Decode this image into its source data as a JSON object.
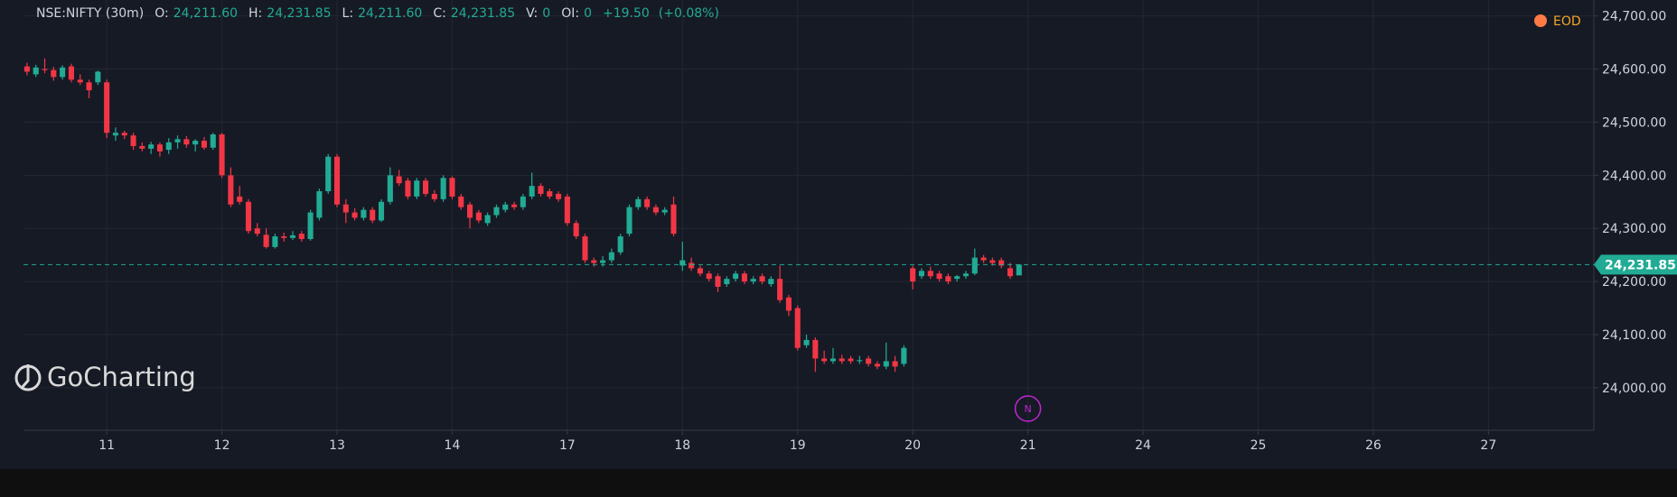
{
  "chart_data": {
    "type": "candlestick",
    "header": {
      "symbol": "NSE:NIFTY (30m)",
      "fields": [
        {
          "key": "O:",
          "value": "24,211.60"
        },
        {
          "key": "H:",
          "value": "24,231.85"
        },
        {
          "key": "L:",
          "value": "24,211.60"
        },
        {
          "key": "C:",
          "value": "24,231.85"
        },
        {
          "key": "V:",
          "value": "0"
        },
        {
          "key": "OI:",
          "value": "0"
        }
      ],
      "change": "+19.50",
      "change_pct": "(+0.08%)"
    },
    "eod_label": "EOD",
    "brand": "GoCharting",
    "event_marker": {
      "x": 113,
      "label": "N"
    },
    "up_color": "#22ab94",
    "down_color": "#f23645",
    "price_line": {
      "value": 24231.85,
      "label": "24,231.85"
    },
    "xlim": [
      -0.4,
      176.9
    ],
    "xticks": [
      {
        "value": 9,
        "label": "11"
      },
      {
        "value": 22,
        "label": "12"
      },
      {
        "value": 35,
        "label": "13"
      },
      {
        "value": 48,
        "label": "14"
      },
      {
        "value": 61,
        "label": "17"
      },
      {
        "value": 74,
        "label": "18"
      },
      {
        "value": 87,
        "label": "19"
      },
      {
        "value": 100,
        "label": "20"
      },
      {
        "value": 113,
        "label": "21"
      },
      {
        "value": 126,
        "label": "24"
      },
      {
        "value": 139,
        "label": "25"
      },
      {
        "value": 152,
        "label": "26"
      },
      {
        "value": 165,
        "label": "27"
      }
    ],
    "ylim": [
      23920,
      24730
    ],
    "yticks": [
      {
        "value": 24000,
        "label": "24,000.00"
      },
      {
        "value": 24100,
        "label": "24,100.00"
      },
      {
        "value": 24200,
        "label": "24,200.00"
      },
      {
        "value": 24300,
        "label": "24,300.00"
      },
      {
        "value": 24400,
        "label": "24,400.00"
      },
      {
        "value": 24500,
        "label": "24,500.00"
      },
      {
        "value": 24600,
        "label": "24,600.00"
      },
      {
        "value": 24700,
        "label": "24,700.00"
      }
    ],
    "grid": true,
    "ohlc": [
      [
        24605,
        24612,
        24588,
        24595
      ],
      [
        24590,
        24608,
        24585,
        24603
      ],
      [
        24600,
        24620,
        24592,
        24598
      ],
      [
        24598,
        24604,
        24578,
        24585
      ],
      [
        24585,
        24607,
        24580,
        24603
      ],
      [
        24605,
        24610,
        24575,
        24580
      ],
      [
        24580,
        24590,
        24570,
        24575
      ],
      [
        24575,
        24580,
        24545,
        24560
      ],
      [
        24575,
        24597,
        24570,
        24595
      ],
      [
        24575,
        24580,
        24470,
        24480
      ],
      [
        24475,
        24490,
        24465,
        24480
      ],
      [
        24480,
        24484,
        24468,
        24475
      ],
      [
        24475,
        24480,
        24448,
        24455
      ],
      [
        24455,
        24462,
        24445,
        24450
      ],
      [
        24450,
        24463,
        24440,
        24458
      ],
      [
        24458,
        24462,
        24435,
        24445
      ],
      [
        24448,
        24470,
        24440,
        24462
      ],
      [
        24462,
        24475,
        24450,
        24468
      ],
      [
        24468,
        24474,
        24452,
        24458
      ],
      [
        24458,
        24468,
        24445,
        24465
      ],
      [
        24465,
        24472,
        24448,
        24452
      ],
      [
        24452,
        24480,
        24448,
        24477
      ],
      [
        24477,
        24480,
        24395,
        24400
      ],
      [
        24400,
        24415,
        24340,
        24345
      ],
      [
        24360,
        24380,
        24345,
        24350
      ],
      [
        24350,
        24355,
        24290,
        24295
      ],
      [
        24300,
        24310,
        24285,
        24290
      ],
      [
        24288,
        24300,
        24262,
        24265
      ],
      [
        24265,
        24290,
        24262,
        24285
      ],
      [
        24285,
        24292,
        24275,
        24282
      ],
      [
        24282,
        24295,
        24278,
        24287
      ],
      [
        24290,
        24295,
        24275,
        24280
      ],
      [
        24280,
        24335,
        24277,
        24330
      ],
      [
        24320,
        24375,
        24315,
        24370
      ],
      [
        24370,
        24440,
        24365,
        24435
      ],
      [
        24435,
        24440,
        24340,
        24345
      ],
      [
        24345,
        24355,
        24310,
        24330
      ],
      [
        24330,
        24338,
        24315,
        24320
      ],
      [
        24320,
        24340,
        24315,
        24335
      ],
      [
        24335,
        24340,
        24310,
        24315
      ],
      [
        24315,
        24355,
        24312,
        24350
      ],
      [
        24350,
        24415,
        24345,
        24400
      ],
      [
        24398,
        24410,
        24380,
        24385
      ],
      [
        24390,
        24395,
        24355,
        24360
      ],
      [
        24360,
        24395,
        24355,
        24390
      ],
      [
        24390,
        24395,
        24360,
        24365
      ],
      [
        24365,
        24372,
        24350,
        24355
      ],
      [
        24355,
        24400,
        24350,
        24395
      ],
      [
        24395,
        24398,
        24355,
        24360
      ],
      [
        24360,
        24365,
        24335,
        24340
      ],
      [
        24345,
        24350,
        24300,
        24320
      ],
      [
        24330,
        24335,
        24310,
        24315
      ],
      [
        24310,
        24330,
        24305,
        24325
      ],
      [
        24325,
        24345,
        24320,
        24340
      ],
      [
        24335,
        24350,
        24330,
        24345
      ],
      [
        24345,
        24350,
        24335,
        24340
      ],
      [
        24340,
        24365,
        24335,
        24360
      ],
      [
        24360,
        24405,
        24355,
        24380
      ],
      [
        24380,
        24385,
        24360,
        24365
      ],
      [
        24370,
        24375,
        24355,
        24360
      ],
      [
        24365,
        24370,
        24350,
        24355
      ],
      [
        24360,
        24365,
        24305,
        24310
      ],
      [
        24310,
        24315,
        24280,
        24285
      ],
      [
        24285,
        24290,
        24235,
        24240
      ],
      [
        24240,
        24245,
        24228,
        24235
      ],
      [
        24235,
        24248,
        24228,
        24240
      ],
      [
        24240,
        24262,
        24235,
        24255
      ],
      [
        24255,
        24290,
        24250,
        24285
      ],
      [
        24290,
        24345,
        24285,
        24340
      ],
      [
        24340,
        24360,
        24335,
        24355
      ],
      [
        24355,
        24360,
        24335,
        24340
      ],
      [
        24340,
        24345,
        24325,
        24330
      ],
      [
        24330,
        24340,
        24325,
        24335
      ],
      [
        24345,
        24360,
        24285,
        24290
      ],
      [
        24230,
        24275,
        24220,
        24240
      ],
      [
        24235,
        24245,
        24220,
        24225
      ],
      [
        24225,
        24230,
        24210,
        24215
      ],
      [
        24215,
        24220,
        24200,
        24205
      ],
      [
        24210,
        24215,
        24180,
        24190
      ],
      [
        24195,
        24210,
        24190,
        24205
      ],
      [
        24205,
        24220,
        24200,
        24215
      ],
      [
        24215,
        24220,
        24195,
        24200
      ],
      [
        24200,
        24210,
        24195,
        24205
      ],
      [
        24210,
        24215,
        24195,
        24200
      ],
      [
        24195,
        24210,
        24190,
        24205
      ],
      [
        24205,
        24230,
        24160,
        24165
      ],
      [
        24170,
        24175,
        24135,
        24145
      ],
      [
        24150,
        24155,
        24070,
        24075
      ],
      [
        24080,
        24100,
        24075,
        24090
      ],
      [
        24090,
        24095,
        24030,
        24055
      ],
      [
        24055,
        24070,
        24045,
        24050
      ],
      [
        24050,
        24075,
        24045,
        24055
      ],
      [
        24055,
        24062,
        24045,
        24050
      ],
      [
        24055,
        24060,
        24045,
        24050
      ],
      [
        24050,
        24060,
        24045,
        24052
      ],
      [
        24055,
        24060,
        24040,
        24045
      ],
      [
        24045,
        24050,
        24035,
        24040
      ],
      [
        24040,
        24085,
        24035,
        24050
      ],
      [
        24050,
        24060,
        24030,
        24040
      ],
      [
        24045,
        24080,
        24040,
        24075
      ],
      [
        24225,
        24230,
        24185,
        24200
      ],
      [
        24210,
        24225,
        24205,
        24220
      ],
      [
        24220,
        24228,
        24205,
        24210
      ],
      [
        24215,
        24220,
        24200,
        24205
      ],
      [
        24210,
        24215,
        24195,
        24200
      ],
      [
        24205,
        24212,
        24200,
        24210
      ],
      [
        24210,
        24220,
        24205,
        24215
      ],
      [
        24215,
        24262,
        24212,
        24245
      ],
      [
        24245,
        24250,
        24235,
        24240
      ],
      [
        24240,
        24245,
        24230,
        24235
      ],
      [
        24240,
        24245,
        24225,
        24230
      ],
      [
        24225,
        24235,
        24205,
        24210
      ],
      [
        24211.6,
        24231.85,
        24211.6,
        24231.85
      ]
    ]
  }
}
